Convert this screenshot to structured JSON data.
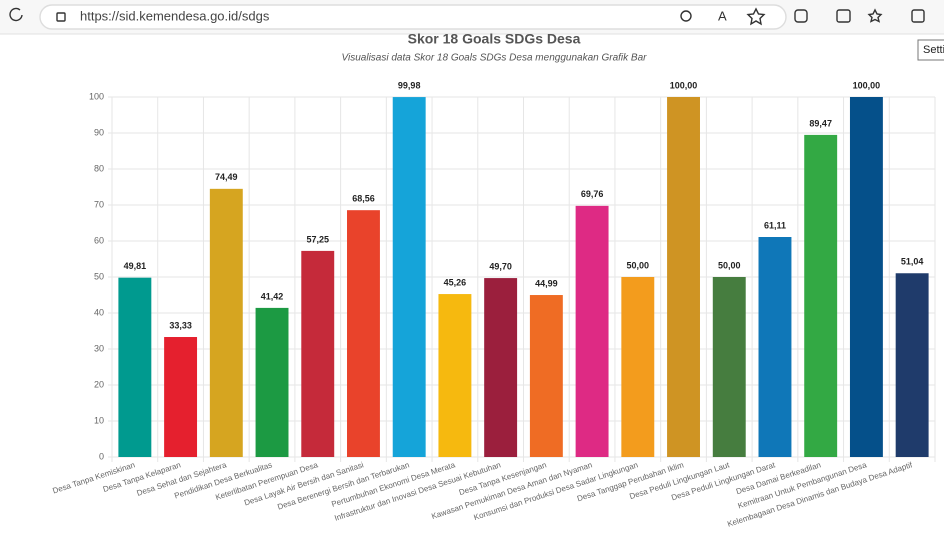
{
  "browser": {
    "url": "https://sid.kemendesa.go.id/sdgs",
    "tooltip": "Setti"
  },
  "chart_data": {
    "type": "bar",
    "title": "Skor 18 Goals SDGs Desa",
    "subtitle": "Visualisasi data Skor 18 Goals SDGs Desa menggunakan Grafik Bar",
    "categories": [
      "Desa Tanpa Kemiskinan",
      "Desa Tanpa Kelaparan",
      "Desa Sehat dan Sejahtera",
      "Pendidikan Desa Berkualitas",
      "Keterlibatan Perempuan Desa",
      "Desa Layak Air Bersih dan Sanitasi",
      "Desa Berenergi Bersih dan Terbarukan",
      "Pertumbuhan Ekonomi Desa Merata",
      "Infrastruktur dan Inovasi Desa Sesuai Kebutuhan",
      "Desa Tanpa Kesenjangan",
      "Kawasan Pemukiman Desa Aman dan Nyaman",
      "Konsumsi dan Produksi Desa Sadar Lingkungan",
      "Desa Tanggap Perubahan Iklim",
      "Desa Peduli Lingkungan Laut",
      "Desa Peduli Lingkungan Darat",
      "Desa Damai Berkeadilan",
      "Kemitraan Untuk Pembangunan Desa",
      "Kelembagaan Desa Dinamis dan Budaya Desa Adaptif"
    ],
    "values": [
      49.81,
      33.33,
      74.49,
      41.42,
      57.25,
      68.56,
      99.98,
      45.26,
      49.7,
      44.99,
      69.76,
      50.0,
      100.0,
      50.0,
      61.11,
      89.47,
      100.0,
      51.04
    ],
    "value_labels": [
      "49,81",
      "33,33",
      "74,49",
      "41,42",
      "57,25",
      "68,56",
      "99,98",
      "45,26",
      "49,70",
      "44,99",
      "69,76",
      "50,00",
      "100,00",
      "50,00",
      "61,11",
      "89,47",
      "100,00",
      "51,04"
    ],
    "colors": [
      "#009a8f",
      "#e5202e",
      "#d6a520",
      "#1c9a43",
      "#c52a3a",
      "#e9432b",
      "#15a4d9",
      "#f6b90f",
      "#9b1f3d",
      "#ef6c24",
      "#de2a84",
      "#f39c1d",
      "#cf9423",
      "#467d3f",
      "#0f77b8",
      "#33a944",
      "#05508a",
      "#1f3b6b"
    ],
    "ylim": [
      0,
      100
    ],
    "yticks": [
      0,
      10,
      20,
      30,
      40,
      50,
      60,
      70,
      80,
      90,
      100
    ],
    "grid": true
  }
}
